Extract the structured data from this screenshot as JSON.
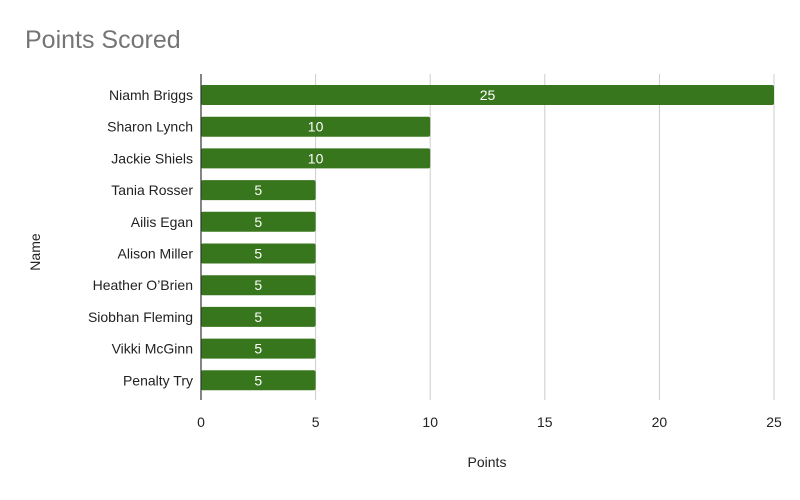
{
  "chart_data": {
    "type": "bar",
    "orientation": "horizontal",
    "title": "Points Scored",
    "xlabel": "Points",
    "ylabel": "Name",
    "categories": [
      "Niamh Briggs",
      "Sharon Lynch",
      "Jackie Shiels",
      "Tania Rosser",
      "Ailis Egan",
      "Alison Miller",
      "Heather O’Brien",
      "Siobhan Fleming",
      "Vikki McGinn",
      "Penalty Try"
    ],
    "values": [
      25,
      10,
      10,
      5,
      5,
      5,
      5,
      5,
      5,
      5
    ],
    "xlim": [
      0,
      25
    ],
    "xticks": [
      0,
      5,
      10,
      15,
      20,
      25
    ],
    "grid": "vertical",
    "legend": "none",
    "data_labels": true,
    "colors": {
      "bar": "#38761d",
      "bar_label": "#ffffff",
      "grid": "#cccccc",
      "axis": "#333333",
      "text": "#222222",
      "title": "#757575"
    }
  }
}
